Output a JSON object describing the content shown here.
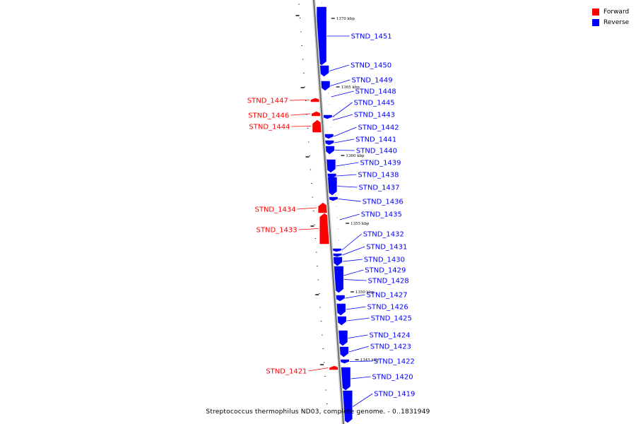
{
  "legend": {
    "forward_label": "Forward",
    "reverse_label": "Reverse",
    "forward_color": "#ff0000",
    "reverse_color": "#0000ff"
  },
  "caption": "Streptococcus thermophilus ND03, complete genome. - 0..1831949",
  "scale_labels": [
    "1370 kbp",
    "1365 kbp",
    "1360 kbp",
    "1355 kbp",
    "1350 kbp",
    "1345 kbp"
  ],
  "reverse_genes": [
    "STND_1451",
    "STND_1450",
    "STND_1449",
    "STND_1448",
    "STND_1445",
    "STND_1443",
    "STND_1442",
    "STND_1441",
    "STND_1440",
    "STND_1439",
    "STND_1438",
    "STND_1437",
    "STND_1436",
    "STND_1435",
    "STND_1432",
    "STND_1431",
    "STND_1430",
    "STND_1429",
    "STND_1428",
    "STND_1427",
    "STND_1426",
    "STND_1425",
    "STND_1424",
    "STND_1423",
    "STND_1422",
    "STND_1420",
    "STND_1419"
  ],
  "forward_genes": [
    "STND_1447",
    "STND_1446",
    "STND_1444",
    "STND_1434",
    "STND_1433",
    "STND_1421"
  ]
}
